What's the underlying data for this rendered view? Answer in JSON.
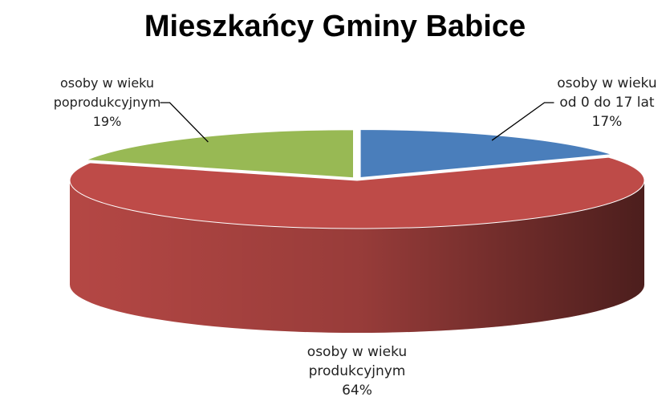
{
  "chart_data": {
    "type": "pie",
    "title": "Mieszkańcy Gminy Babice",
    "categories": [
      "osoby w wieku od 0 do 17 lat",
      "osoby w wieku produkcyjnym",
      "osoby w wieku poprodukcyjnym"
    ],
    "values": [
      17,
      64,
      19
    ],
    "value_labels": [
      "17%",
      "64%",
      "19%"
    ],
    "colors": [
      "#4a7ebb",
      "#be4b48",
      "#98b954"
    ]
  }
}
